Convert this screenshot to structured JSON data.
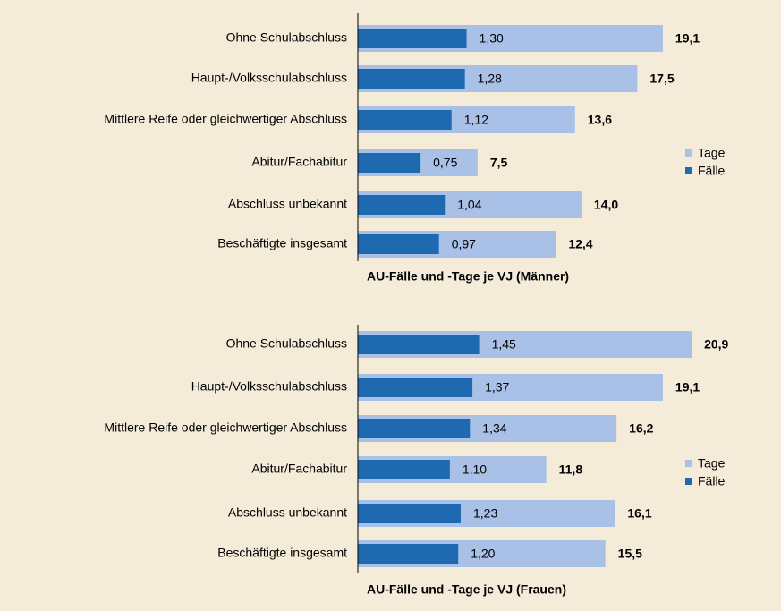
{
  "chart_data": [
    {
      "type": "bar",
      "title": "AU-Fälle und -Tage je VJ (Männer)",
      "categories": [
        "Ohne Schulabschluss",
        "Haupt-/Volksschulabschluss",
        "Mittlere Reife oder gleichwertiger Abschluss",
        "Abitur/Fachabitur",
        "Abschluss unbekannt",
        "Beschäftigte insgesamt"
      ],
      "series": [
        {
          "name": "Tage",
          "color": "#a9c0e7",
          "values": [
            19.1,
            17.5,
            13.6,
            7.5,
            14.0,
            12.4
          ],
          "value_labels": [
            "19,1",
            "17,5",
            "13,6",
            "7,5",
            "14,0",
            "12,4"
          ]
        },
        {
          "name": "Fälle",
          "color": "#1f69b0",
          "values": [
            1.3,
            1.28,
            1.12,
            0.75,
            1.04,
            0.97
          ],
          "value_labels": [
            "1,30",
            "1,28",
            "1,12",
            "0,75",
            "1,04",
            "0,97"
          ]
        }
      ],
      "legend": "right"
    },
    {
      "type": "bar",
      "title": "AU-Fälle und -Tage je VJ (Frauen)",
      "categories": [
        "Ohne Schulabschluss",
        "Haupt-/Volksschulabschluss",
        "Mittlere Reife oder gleichwertiger Abschluss",
        "Abitur/Fachabitur",
        "Abschluss unbekannt",
        "Beschäftigte insgesamt"
      ],
      "series": [
        {
          "name": "Tage",
          "color": "#a9c0e7",
          "values": [
            20.9,
            19.1,
            16.2,
            11.8,
            16.1,
            15.5
          ],
          "value_labels": [
            "20,9",
            "19,1",
            "16,2",
            "11,8",
            "16,1",
            "15,5"
          ]
        },
        {
          "name": "Fälle",
          "color": "#1f69b0",
          "values": [
            1.45,
            1.37,
            1.34,
            1.1,
            1.23,
            1.2
          ],
          "value_labels": [
            "1,45",
            "1,37",
            "1,34",
            "1,10",
            "1,23",
            "1,20"
          ]
        }
      ],
      "legend": "right"
    }
  ]
}
